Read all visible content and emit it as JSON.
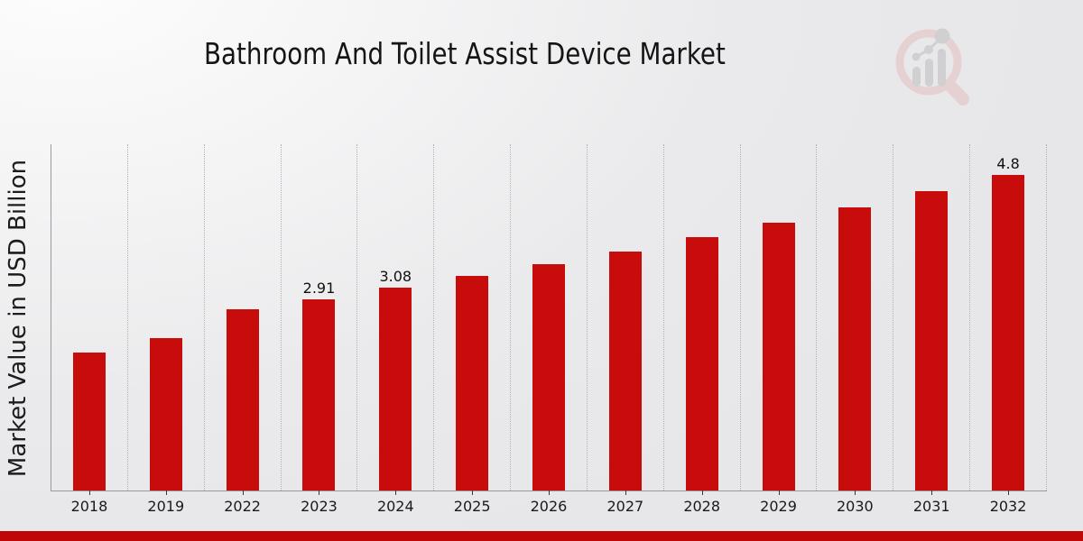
{
  "page": {
    "title": "Bathroom And Toilet Assist Device Market"
  },
  "colors": {
    "bar": "#c80c0c",
    "bottom_stripe": "#c00707",
    "axis": "#9a9a9d",
    "grid": "#b3b3b6",
    "text": "#1a1a1a",
    "logo_ring": "#e2c2c2",
    "logo_gray": "#c6c6ca"
  },
  "icons": {
    "watermark": "magnifier-bar-chart-logo-icon"
  },
  "chart_data": {
    "type": "bar",
    "title": "Bathroom And Toilet Assist Device Market",
    "xlabel": "",
    "ylabel": "Market Value in USD Billion",
    "categories": [
      "2018",
      "2019",
      "2022",
      "2023",
      "2024",
      "2025",
      "2026",
      "2027",
      "2028",
      "2029",
      "2030",
      "2031",
      "2032"
    ],
    "values": [
      2.1,
      2.32,
      2.76,
      2.91,
      3.08,
      3.26,
      3.44,
      3.64,
      3.85,
      4.07,
      4.31,
      4.55,
      4.8
    ],
    "bar_labels": [
      "",
      "",
      "",
      "2.91",
      "3.08",
      "",
      "",
      "",
      "",
      "",
      "",
      "",
      "4.8"
    ],
    "ylim": [
      0,
      5.28
    ],
    "grid": "vertical-dotted",
    "legend": "none",
    "bar_color": "#c80c0c"
  }
}
